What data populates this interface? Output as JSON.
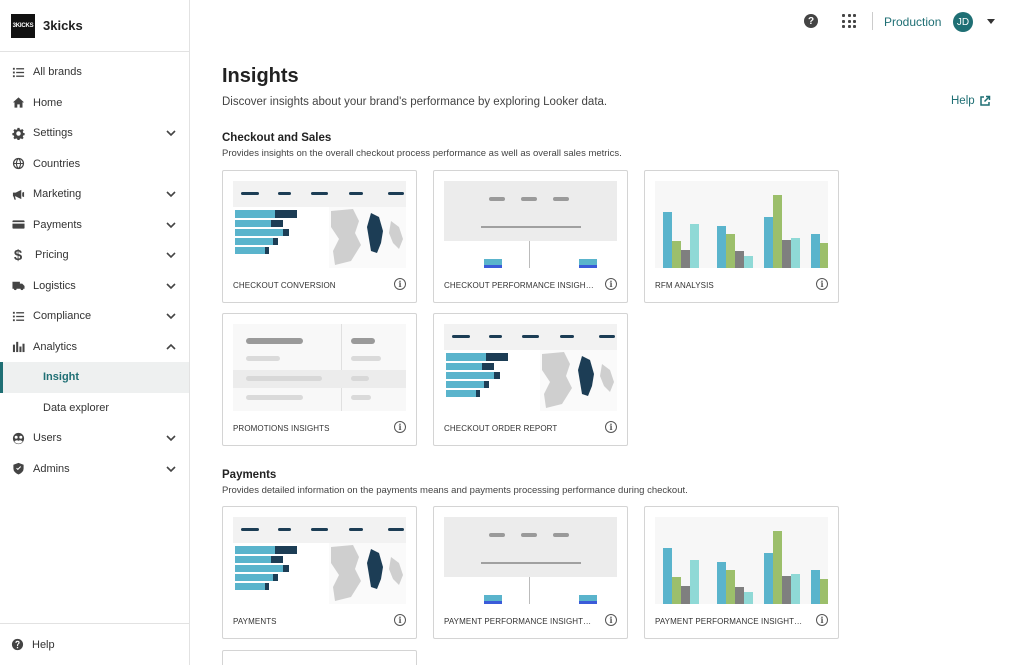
{
  "brand": {
    "logo_text": "3KICKS",
    "name": "3kicks"
  },
  "sidebar": {
    "items": [
      {
        "label": "All brands",
        "icon": "list-icon",
        "expandable": false
      },
      {
        "label": "Home",
        "icon": "home-icon",
        "expandable": false
      },
      {
        "label": "Settings",
        "icon": "gear-icon",
        "expandable": true
      },
      {
        "label": "Countries",
        "icon": "globe-icon",
        "expandable": false
      },
      {
        "label": "Marketing",
        "icon": "megaphone-icon",
        "expandable": true
      },
      {
        "label": "Payments",
        "icon": "credit-card-icon",
        "expandable": true
      },
      {
        "label": "Pricing",
        "icon": "dollar-icon",
        "expandable": true
      },
      {
        "label": "Logistics",
        "icon": "truck-icon",
        "expandable": true
      },
      {
        "label": "Compliance",
        "icon": "checklist-icon",
        "expandable": true
      },
      {
        "label": "Analytics",
        "icon": "bar-chart-icon",
        "expandable": true,
        "expanded": true
      }
    ],
    "analytics_children": [
      {
        "label": "Insight",
        "active": true
      },
      {
        "label": "Data explorer",
        "active": false
      }
    ],
    "items_after": [
      {
        "label": "Users",
        "icon": "users-icon",
        "expandable": true
      },
      {
        "label": "Admins",
        "icon": "shield-icon",
        "expandable": true
      }
    ],
    "help_label": "Help"
  },
  "topbar": {
    "help_icon": "question-icon",
    "apps_icon": "grid-icon",
    "environment": "Production",
    "avatar_initials": "JD"
  },
  "page": {
    "title": "Insights",
    "subtitle": "Discover insights about your brand's performance by exploring Looker data.",
    "help_link": "Help"
  },
  "sections": [
    {
      "title": "Checkout and Sales",
      "description": "Provides insights on the overall checkout process performance as well as overall sales metrics.",
      "cards": [
        {
          "label": "CHECKOUT CONVERSION",
          "thumb": "map"
        },
        {
          "label": "CHECKOUT PERFORMANCE INSIGHTS...",
          "thumb": "tree"
        },
        {
          "label": "RFM ANALYSIS",
          "thumb": "bars"
        },
        {
          "label": "PROMOTIONS INSIGHTS",
          "thumb": "table"
        },
        {
          "label": "CHECKOUT ORDER REPORT",
          "thumb": "map"
        }
      ]
    },
    {
      "title": "Payments",
      "description": "Provides detailed information on the payments means and payments processing performance during checkout.",
      "cards": [
        {
          "label": "PAYMENTS",
          "thumb": "map"
        },
        {
          "label": "PAYMENT PERFORMANCE INSIGHTS AH",
          "thumb": "tree"
        },
        {
          "label": "PAYMENT PERFORMANCE INSIGHTS...",
          "thumb": "bars"
        }
      ]
    }
  ],
  "colors": {
    "accent": "#1f6f74",
    "teal_bar": "#5ab4cc",
    "dark_bar": "#1c3d55",
    "green_bar": "#9cbf6b",
    "grey_bar": "#7f7f7f",
    "light_teal_bar": "#8fd9d6",
    "blue_block": "#3b5bd9"
  }
}
